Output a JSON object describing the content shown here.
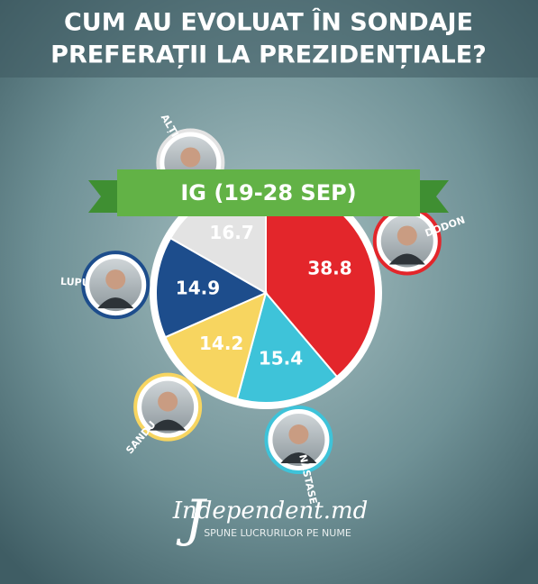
{
  "chart_data": {
    "type": "pie",
    "title": [
      "CUM AU EVOLUAT ÎN SONDAJE",
      "PREFERAȚII LA PREZIDENȚIALE?"
    ],
    "subtitle": "IG (19-28 SEP)",
    "categories": [
      "DODON",
      "NĂSTASE",
      "SANDU",
      "LUPU",
      "ALȚII"
    ],
    "values": [
      38.8,
      15.4,
      14.2,
      14.9,
      16.7
    ],
    "colors": [
      "#e3262b",
      "#3ec3d9",
      "#f7d560",
      "#1d4d8c",
      "#e3e3e3"
    ],
    "label_colors": [
      "#ffffff",
      "#ffffff",
      "#ffffff",
      "#ffffff",
      "#ffffff"
    ]
  },
  "logo": {
    "name": "Independent.md",
    "tagline": "SPUNE LUCRURILOR PE NUME"
  }
}
